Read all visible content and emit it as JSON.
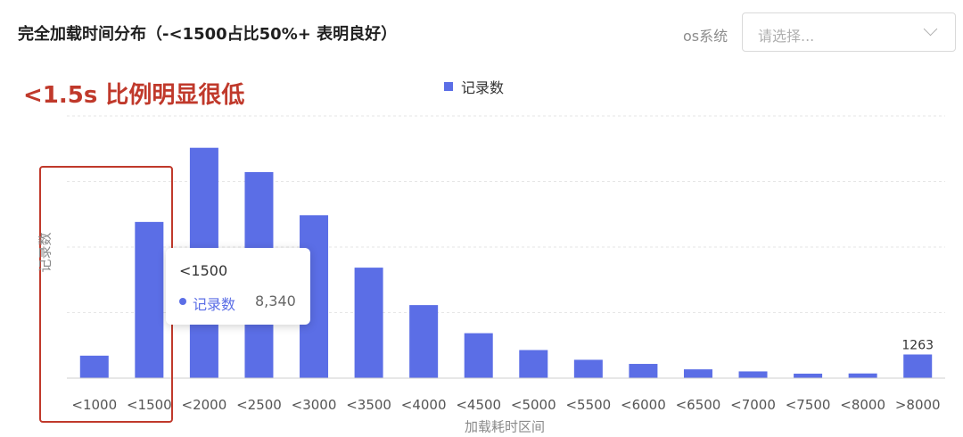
{
  "header": {
    "title": "完全加载时间分布（-<1500占比50%+ 表明良好）",
    "filter_label": "os系统",
    "filter_placeholder": "请选择..."
  },
  "annotation": {
    "text": "<1.5s 比例明显很低"
  },
  "tooltip": {
    "category": "<1500",
    "series_name": "记录数",
    "value": "8,340"
  },
  "colors": {
    "bar": "#5b6ee6",
    "annotation": "#c0392b"
  },
  "chart_data": {
    "type": "bar",
    "title": "",
    "xlabel": "加载耗时区间",
    "ylabel": "记录数",
    "categories": [
      "<1000",
      "<1500",
      "<2000",
      "<2500",
      "<3000",
      "<3500",
      "<4000",
      "<4500",
      "<5000",
      "<5500",
      "<6000",
      "<6500",
      "<7000",
      "<7500",
      "<8000",
      ">8000"
    ],
    "series": [
      {
        "name": "记录数",
        "values": [
          1200,
          8340,
          12300,
          11000,
          8700,
          5900,
          3900,
          2400,
          1500,
          980,
          760,
          470,
          360,
          240,
          250,
          1263
        ]
      }
    ],
    "data_labels": [
      "",
      "",
      "",
      "",
      "",
      "",
      "",
      "",
      "",
      "",
      "",
      "",
      "",
      "",
      "",
      "1263"
    ],
    "ylim": [
      0,
      14000
    ],
    "grid": true,
    "legend": "top-center"
  }
}
